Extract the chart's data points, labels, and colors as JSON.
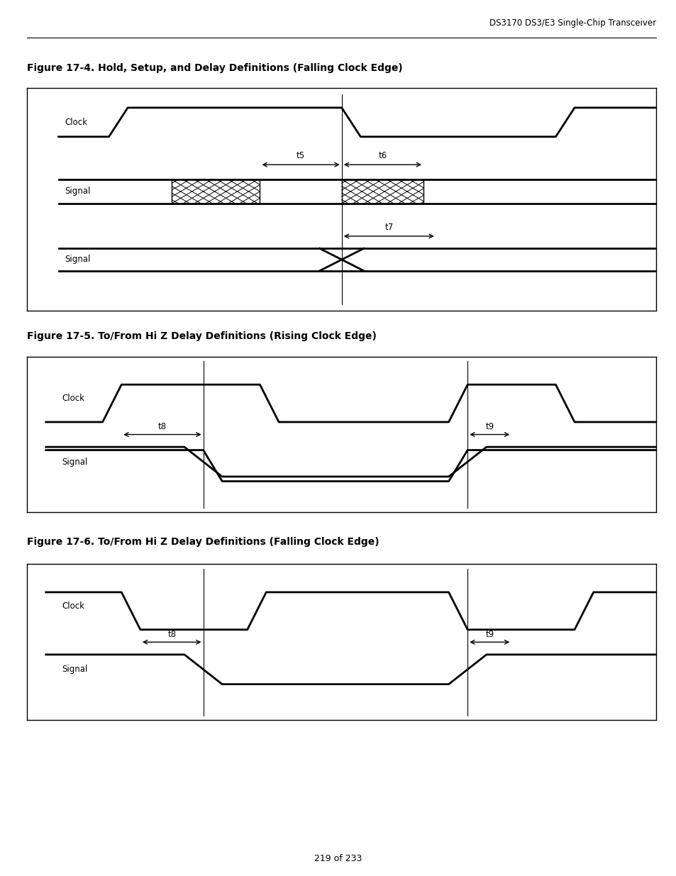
{
  "header_text": "DS3170 DS3/E3 Single-Chip Transceiver",
  "page_text": "219 of 233",
  "fig1_title": "Figure 17-4. Hold, Setup, and Delay Definitions (Falling Clock Edge)",
  "fig2_title": "Figure 17-5. To/From Hi Z Delay Definitions (Rising Clock Edge)",
  "fig3_title": "Figure 17-6. To/From Hi Z Delay Definitions (Falling Clock Edge)",
  "line_color": "#000000",
  "bg_color": "#ffffff"
}
